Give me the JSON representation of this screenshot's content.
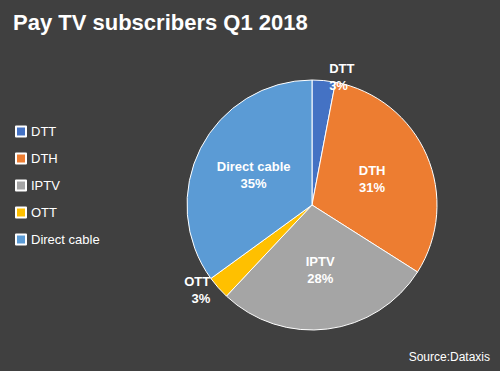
{
  "chart_data": {
    "type": "pie",
    "title": "Pay TV subscribers Q1 2018",
    "categories": [
      "DTT",
      "DTH",
      "IPTV",
      "OTT",
      "Direct cable"
    ],
    "values": [
      3,
      31,
      28,
      3,
      35
    ],
    "value_labels": [
      "3%",
      "31%",
      "28%",
      "3%",
      "35%"
    ],
    "colors": [
      "#4472c4",
      "#ed7d31",
      "#a5a5a5",
      "#ffc000",
      "#5b9bd5"
    ],
    "data_labels": true,
    "legend": "left",
    "source": "Source:Dataxis"
  }
}
